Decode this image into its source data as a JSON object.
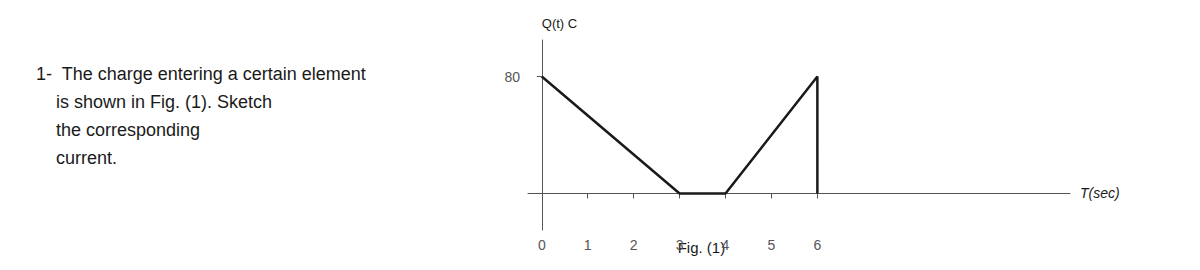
{
  "chart_data": {
    "type": "line",
    "xlabel": "T(sec)",
    "ylabel": "Q(t) C",
    "annotations": [
      "1-  The charge entering a certain element",
      "    is shown in Fig. (1). Sketch",
      "    the corresponding",
      "    current.",
      "Fig. (1)"
    ],
    "x": [
      0,
      3,
      4,
      6,
      6
    ],
    "values": [
      80,
      0,
      0,
      80,
      0
    ],
    "color": "#1a1a1a",
    "xlim": [
      -0.3,
      11.5
    ],
    "ylim": [
      -25,
      105
    ],
    "xticks": [
      0,
      1,
      2,
      3,
      4,
      5,
      6
    ],
    "yticks": [
      80
    ],
    "grid": false
  }
}
